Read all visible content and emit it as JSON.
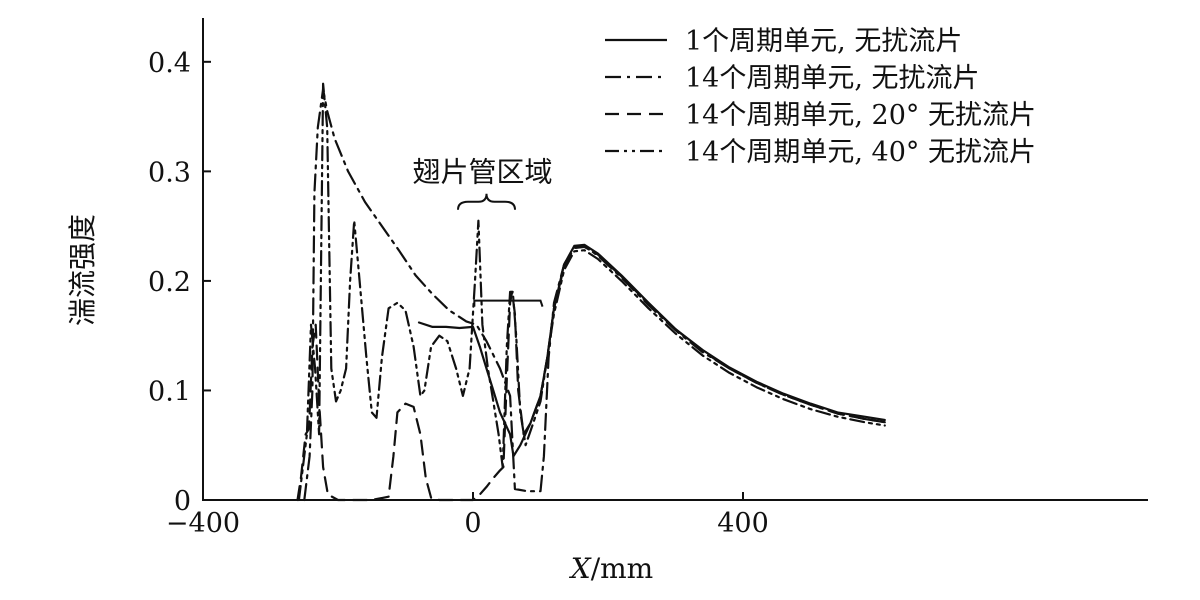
{
  "chart_data": {
    "type": "line",
    "title": "",
    "xlabel_italic": "X",
    "xlabel_rest": "/mm",
    "ylabel": "湍流强度",
    "xlim": [
      -400,
      1000
    ],
    "ylim": [
      0,
      0.44
    ],
    "x_ticks": [
      -400,
      0,
      400
    ],
    "x_tick_labels": [
      "−400",
      "0",
      "400"
    ],
    "y_ticks": [
      0,
      0.1,
      0.2,
      0.3,
      0.4
    ],
    "y_tick_labels": [
      "0",
      "0.1",
      "0.2",
      "0.3",
      "0.4"
    ],
    "grid": false,
    "legend_position": "top-right",
    "annotation": {
      "text": "翅片管区域",
      "x_range": [
        -40,
        80
      ],
      "y": 0.265
    },
    "series": [
      {
        "name": "1个周期单元, 无扰流片",
        "dash": "solid",
        "points": [
          [
            -80,
            0.162
          ],
          [
            -60,
            0.158
          ],
          [
            -40,
            0.158
          ],
          [
            -20,
            0.157
          ],
          [
            0,
            0.158
          ],
          [
            10,
            0.14
          ],
          [
            20,
            0.12
          ],
          [
            30,
            0.1
          ],
          [
            40,
            0.08
          ],
          [
            55,
            0.06
          ],
          [
            60,
            0.04
          ],
          [
            70,
            0.05
          ],
          [
            85,
            0.07
          ],
          [
            100,
            0.095
          ],
          [
            110,
            0.13
          ],
          [
            120,
            0.175
          ],
          [
            135,
            0.215
          ],
          [
            150,
            0.232
          ],
          [
            165,
            0.233
          ],
          [
            185,
            0.225
          ],
          [
            220,
            0.205
          ],
          [
            260,
            0.18
          ],
          [
            300,
            0.156
          ],
          [
            340,
            0.137
          ],
          [
            380,
            0.121
          ],
          [
            420,
            0.108
          ],
          [
            460,
            0.097
          ],
          [
            500,
            0.088
          ],
          [
            540,
            0.08
          ],
          [
            580,
            0.076
          ],
          [
            610,
            0.073
          ]
        ]
      },
      {
        "name": "14个周期单元, 无扰流片",
        "dash": "dashdot",
        "points": [
          [
            -250,
            0
          ],
          [
            -242,
            0.04
          ],
          [
            -238,
            0.1
          ],
          [
            -235,
            0.28
          ],
          [
            -230,
            0.34
          ],
          [
            -222,
            0.375
          ],
          [
            -216,
            0.355
          ],
          [
            -205,
            0.33
          ],
          [
            -185,
            0.3
          ],
          [
            -160,
            0.272
          ],
          [
            -135,
            0.25
          ],
          [
            -110,
            0.228
          ],
          [
            -85,
            0.205
          ],
          [
            -60,
            0.188
          ],
          [
            -35,
            0.173
          ],
          [
            -10,
            0.163
          ],
          [
            5,
            0.16
          ],
          [
            20,
            0.145
          ],
          [
            40,
            0.12
          ],
          [
            55,
            0.095
          ],
          [
            62,
            0.01
          ],
          [
            80,
            0.008
          ],
          [
            100,
            0.008
          ],
          [
            105,
            0.04
          ],
          [
            112,
            0.13
          ],
          [
            120,
            0.18
          ],
          [
            135,
            0.215
          ],
          [
            150,
            0.231
          ],
          [
            165,
            0.232
          ],
          [
            185,
            0.223
          ],
          [
            220,
            0.203
          ],
          [
            260,
            0.178
          ],
          [
            300,
            0.155
          ],
          [
            340,
            0.135
          ],
          [
            380,
            0.12
          ],
          [
            420,
            0.107
          ],
          [
            460,
            0.096
          ],
          [
            500,
            0.087
          ],
          [
            540,
            0.079
          ],
          [
            580,
            0.074
          ],
          [
            610,
            0.071
          ]
        ]
      },
      {
        "name": "14个周期单元, 20° 无扰流片",
        "dash": "dashed",
        "points": [
          [
            -260,
            0.0
          ],
          [
            -255,
            0.02
          ],
          [
            -248,
            0.06
          ],
          [
            -243,
            0.065
          ],
          [
            -238,
            0.14
          ],
          [
            -233,
            0.16
          ],
          [
            -228,
            0.09
          ],
          [
            -222,
            0.03
          ],
          [
            -215,
            0.005
          ],
          [
            -200,
            0
          ],
          [
            -150,
            0
          ],
          [
            -125,
            0.003
          ],
          [
            -118,
            0.04
          ],
          [
            -112,
            0.08
          ],
          [
            -100,
            0.088
          ],
          [
            -88,
            0.085
          ],
          [
            -78,
            0.06
          ],
          [
            -70,
            0.02
          ],
          [
            -62,
            0.002
          ],
          [
            -50,
            0
          ],
          [
            0,
            0
          ],
          [
            10,
            0.005
          ],
          [
            20,
            0.012
          ],
          [
            30,
            0.02
          ],
          [
            40,
            0.027
          ],
          [
            45,
            0.03
          ],
          [
            50,
            0.11
          ],
          [
            55,
            0.18
          ],
          [
            58,
            0.19
          ],
          [
            62,
            0.17
          ],
          [
            67,
            0.1
          ],
          [
            75,
            0.06
          ],
          [
            85,
            0.07
          ],
          [
            100,
            0.095
          ],
          [
            110,
            0.13
          ],
          [
            120,
            0.175
          ],
          [
            135,
            0.213
          ],
          [
            150,
            0.23
          ],
          [
            165,
            0.231
          ],
          [
            185,
            0.224
          ],
          [
            220,
            0.204
          ],
          [
            260,
            0.179
          ],
          [
            300,
            0.156
          ],
          [
            340,
            0.136
          ],
          [
            380,
            0.12
          ],
          [
            420,
            0.107
          ],
          [
            460,
            0.096
          ],
          [
            500,
            0.087
          ],
          [
            540,
            0.079
          ],
          [
            580,
            0.074
          ],
          [
            610,
            0.071
          ]
        ]
      },
      {
        "name": "14个周期单元, 40° 无扰流片",
        "dash": "dashdotdot",
        "points": [
          [
            -258,
            0
          ],
          [
            -252,
            0.03
          ],
          [
            -246,
            0.06
          ],
          [
            -240,
            0.16
          ],
          [
            -234,
            0.12
          ],
          [
            -228,
            0.06
          ],
          [
            -222,
            0.38
          ],
          [
            -216,
            0.34
          ],
          [
            -210,
            0.12
          ],
          [
            -203,
            0.09
          ],
          [
            -196,
            0.1
          ],
          [
            -188,
            0.12
          ],
          [
            -182,
            0.2
          ],
          [
            -176,
            0.255
          ],
          [
            -168,
            0.2
          ],
          [
            -158,
            0.13
          ],
          [
            -150,
            0.08
          ],
          [
            -143,
            0.075
          ],
          [
            -135,
            0.13
          ],
          [
            -125,
            0.175
          ],
          [
            -112,
            0.18
          ],
          [
            -100,
            0.173
          ],
          [
            -88,
            0.14
          ],
          [
            -78,
            0.095
          ],
          [
            -72,
            0.1
          ],
          [
            -62,
            0.14
          ],
          [
            -50,
            0.15
          ],
          [
            -38,
            0.145
          ],
          [
            -25,
            0.12
          ],
          [
            -15,
            0.095
          ],
          [
            -5,
            0.12
          ],
          [
            3,
            0.2
          ],
          [
            8,
            0.255
          ],
          [
            14,
            0.16
          ],
          [
            22,
            0.12
          ],
          [
            30,
            0.09
          ],
          [
            38,
            0.06
          ],
          [
            44,
            0.03
          ],
          [
            50,
            0.14
          ],
          [
            55,
            0.19
          ],
          [
            59,
            0.19
          ],
          [
            64,
            0.15
          ],
          [
            70,
            0.08
          ],
          [
            78,
            0.05
          ],
          [
            88,
            0.068
          ],
          [
            100,
            0.09
          ],
          [
            110,
            0.13
          ],
          [
            120,
            0.17
          ],
          [
            135,
            0.21
          ],
          [
            150,
            0.227
          ],
          [
            165,
            0.228
          ],
          [
            185,
            0.22
          ],
          [
            220,
            0.2
          ],
          [
            260,
            0.175
          ],
          [
            300,
            0.152
          ],
          [
            340,
            0.132
          ],
          [
            380,
            0.116
          ],
          [
            420,
            0.103
          ],
          [
            460,
            0.092
          ],
          [
            500,
            0.083
          ],
          [
            540,
            0.076
          ],
          [
            580,
            0.071
          ],
          [
            610,
            0.068
          ]
        ]
      }
    ]
  }
}
